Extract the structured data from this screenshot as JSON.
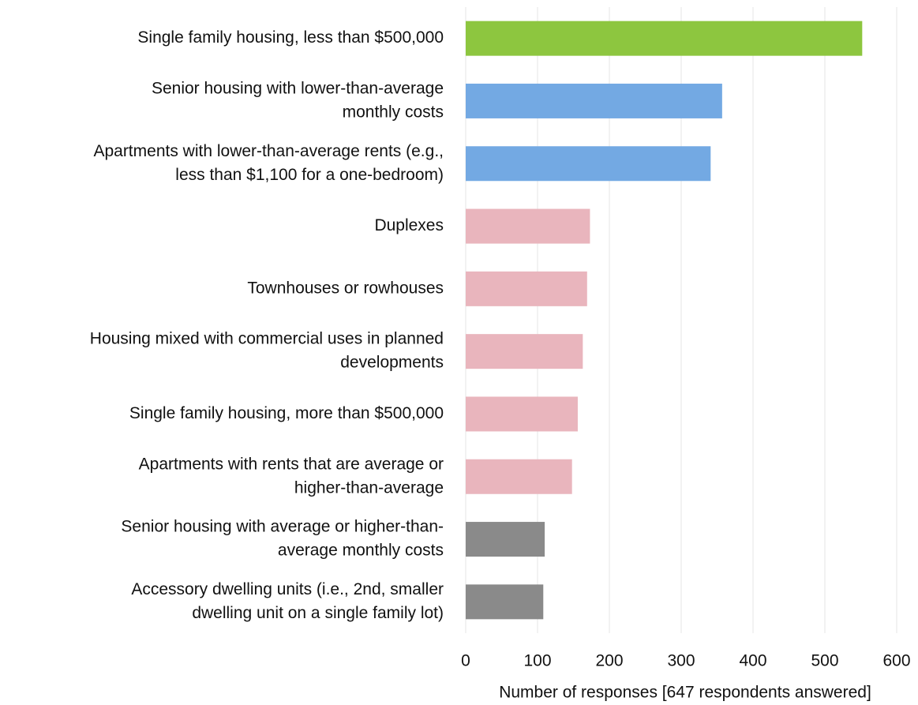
{
  "chart_data": {
    "type": "hbar",
    "categories": [
      [
        "Single family housing, less than $500,000"
      ],
      [
        "Senior housing with lower-than-average",
        "monthly costs"
      ],
      [
        "Apartments with lower-than-average rents (e.g.,",
        "less than $1,100 for a one-bedroom)"
      ],
      [
        "Duplexes"
      ],
      [
        "Townhouses or rowhouses"
      ],
      [
        "Housing mixed with commercial uses in planned",
        "developments"
      ],
      [
        "Single family housing, more than $500,000"
      ],
      [
        "Apartments with rents that are average or",
        "higher-than-average"
      ],
      [
        "Senior housing with average or higher-than-",
        "average monthly costs"
      ],
      [
        "Accessory dwelling units (i.e., 2nd, smaller",
        "dwelling unit on a single family lot)"
      ]
    ],
    "values": [
      552,
      357,
      341,
      173,
      169,
      163,
      156,
      148,
      110,
      108
    ],
    "colors": [
      "#8dc63f",
      "#73a9e3",
      "#73a9e3",
      "#e9b5bd",
      "#e9b5bd",
      "#e9b5bd",
      "#e9b5bd",
      "#e9b5bd",
      "#8a8a8a",
      "#8a8a8a"
    ],
    "xlabel": "Number of responses [647 respondents answered]",
    "xlim": [
      0,
      600
    ],
    "xticks": [
      0,
      100,
      200,
      300,
      400,
      500,
      600
    ],
    "grid": true
  }
}
